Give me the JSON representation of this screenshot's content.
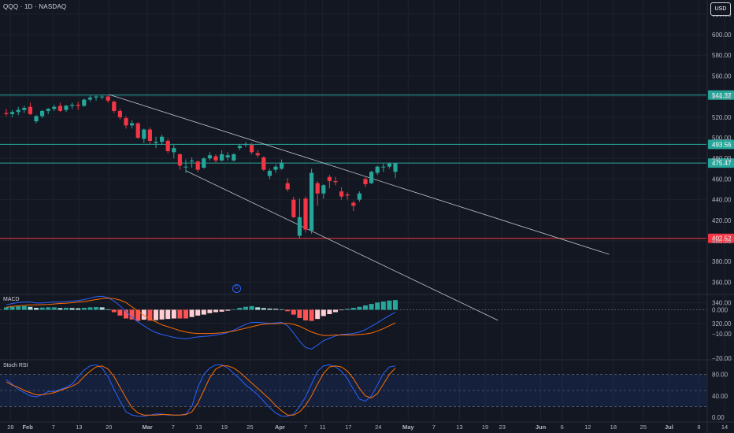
{
  "header": {
    "symbol_line": "QQQ · 1D · NASDAQ",
    "currency_button": "USD"
  },
  "chart_data": {
    "type": "candlestick",
    "title": "QQQ · 1D · NASDAQ",
    "price_axis_ticks": [
      "620.00",
      "600.00",
      "580.00",
      "560.00",
      "540.00",
      "520.00",
      "500.00",
      "480.00",
      "460.00",
      "440.00",
      "420.00",
      "400.00",
      "380.00",
      "360.00",
      "340.00",
      "320.00"
    ],
    "price_range": [
      312,
      625
    ],
    "horizontal_levels": [
      {
        "price": 541.37,
        "label": "541.37",
        "color": "#26a69a"
      },
      {
        "price": 493.56,
        "label": "493.56",
        "color": "#26a69a"
      },
      {
        "price": 475.47,
        "label": "475.47",
        "color": "#26a69a"
      },
      {
        "price": 402.52,
        "label": "402.52",
        "color": "#f23645"
      }
    ],
    "time_axis_ticks": [
      "28",
      "Feb",
      "7",
      "13",
      "20",
      "Mar",
      "7",
      "13",
      "19",
      "25",
      "Apr",
      "7",
      "11",
      "17",
      "24",
      "May",
      "7",
      "13",
      "19",
      "23",
      "Jun",
      "6",
      "12",
      "18",
      "25",
      "Jul",
      "8",
      "14"
    ],
    "trendlines": [
      {
        "from": [
          "Feb 20",
          542
        ],
        "to": [
          "Jun 17",
          387
        ]
      },
      {
        "from": [
          "Mar 10",
          468
        ],
        "to": [
          "May 22",
          323
        ]
      }
    ],
    "candles": [
      {
        "date": "Jan 27",
        "open": 524,
        "high": 528,
        "low": 521,
        "close": 523
      },
      {
        "date": "Jan 28",
        "open": 523,
        "high": 527,
        "low": 520,
        "close": 525
      },
      {
        "date": "Jan 29",
        "open": 525,
        "high": 530,
        "low": 522,
        "close": 527
      },
      {
        "date": "Jan 30",
        "open": 527,
        "high": 531,
        "low": 524,
        "close": 529
      },
      {
        "date": "Jan 31",
        "open": 530,
        "high": 534,
        "low": 522,
        "close": 523
      },
      {
        "date": "Feb 3",
        "open": 516,
        "high": 522,
        "low": 514,
        "close": 521
      },
      {
        "date": "Feb 4",
        "open": 521,
        "high": 527,
        "low": 519,
        "close": 526
      },
      {
        "date": "Feb 5",
        "open": 526,
        "high": 529,
        "low": 523,
        "close": 528
      },
      {
        "date": "Feb 6",
        "open": 528,
        "high": 532,
        "low": 526,
        "close": 530
      },
      {
        "date": "Feb 7",
        "open": 531,
        "high": 534,
        "low": 525,
        "close": 526
      },
      {
        "date": "Feb 10",
        "open": 527,
        "high": 532,
        "low": 525,
        "close": 531
      },
      {
        "date": "Feb 11",
        "open": 531,
        "high": 534,
        "low": 528,
        "close": 532
      },
      {
        "date": "Feb 12",
        "open": 532,
        "high": 535,
        "low": 527,
        "close": 531
      },
      {
        "date": "Feb 13",
        "open": 531,
        "high": 538,
        "low": 530,
        "close": 537
      },
      {
        "date": "Feb 14",
        "open": 537,
        "high": 541,
        "low": 535,
        "close": 539
      },
      {
        "date": "Feb 18",
        "open": 539,
        "high": 541,
        "low": 536,
        "close": 540
      },
      {
        "date": "Feb 19",
        "open": 540,
        "high": 542,
        "low": 537,
        "close": 540
      },
      {
        "date": "Feb 20",
        "open": 540,
        "high": 541,
        "low": 534,
        "close": 536
      },
      {
        "date": "Feb 21",
        "open": 535,
        "high": 536,
        "low": 524,
        "close": 526
      },
      {
        "date": "Feb 24",
        "open": 526,
        "high": 528,
        "low": 518,
        "close": 520
      },
      {
        "date": "Feb 25",
        "open": 519,
        "high": 521,
        "low": 509,
        "close": 512
      },
      {
        "date": "Feb 26",
        "open": 512,
        "high": 517,
        "low": 509,
        "close": 514
      },
      {
        "date": "Feb 27",
        "open": 514,
        "high": 515,
        "low": 499,
        "close": 500
      },
      {
        "date": "Feb 28",
        "open": 499,
        "high": 509,
        "low": 495,
        "close": 508
      },
      {
        "date": "Mar 3",
        "open": 508,
        "high": 510,
        "low": 494,
        "close": 497
      },
      {
        "date": "Mar 4",
        "open": 495,
        "high": 501,
        "low": 490,
        "close": 496
      },
      {
        "date": "Mar 5",
        "open": 496,
        "high": 503,
        "low": 493,
        "close": 501
      },
      {
        "date": "Mar 6",
        "open": 497,
        "high": 499,
        "low": 485,
        "close": 487
      },
      {
        "date": "Mar 7",
        "open": 486,
        "high": 493,
        "low": 480,
        "close": 490
      },
      {
        "date": "Mar 10",
        "open": 484,
        "high": 485,
        "low": 469,
        "close": 473
      },
      {
        "date": "Mar 11",
        "open": 472,
        "high": 479,
        "low": 466,
        "close": 472
      },
      {
        "date": "Mar 12",
        "open": 477,
        "high": 481,
        "low": 471,
        "close": 478
      },
      {
        "date": "Mar 13",
        "open": 477,
        "high": 478,
        "low": 467,
        "close": 469
      },
      {
        "date": "Mar 14",
        "open": 471,
        "high": 481,
        "low": 470,
        "close": 480
      },
      {
        "date": "Mar 17",
        "open": 480,
        "high": 486,
        "low": 478,
        "close": 483
      },
      {
        "date": "Mar 18",
        "open": 482,
        "high": 484,
        "low": 476,
        "close": 478
      },
      {
        "date": "Mar 19",
        "open": 478,
        "high": 488,
        "low": 477,
        "close": 484
      },
      {
        "date": "Mar 20",
        "open": 481,
        "high": 486,
        "low": 478,
        "close": 483
      },
      {
        "date": "Mar 21",
        "open": 478,
        "high": 485,
        "low": 477,
        "close": 484
      },
      {
        "date": "Mar 24",
        "open": 490,
        "high": 494,
        "low": 488,
        "close": 492
      },
      {
        "date": "Mar 25",
        "open": 493,
        "high": 496,
        "low": 491,
        "close": 494
      },
      {
        "date": "Mar 26",
        "open": 493,
        "high": 495,
        "low": 484,
        "close": 486
      },
      {
        "date": "Mar 27",
        "open": 485,
        "high": 488,
        "low": 481,
        "close": 483
      },
      {
        "date": "Mar 28",
        "open": 481,
        "high": 482,
        "low": 468,
        "close": 469
      },
      {
        "date": "Mar 31",
        "open": 463,
        "high": 470,
        "low": 460,
        "close": 468
      },
      {
        "date": "Apr 1",
        "open": 469,
        "high": 474,
        "low": 466,
        "close": 472
      },
      {
        "date": "Apr 2",
        "open": 470,
        "high": 479,
        "low": 469,
        "close": 476
      },
      {
        "date": "Apr 3",
        "open": 456,
        "high": 461,
        "low": 448,
        "close": 450
      },
      {
        "date": "Apr 4",
        "open": 440,
        "high": 443,
        "low": 422,
        "close": 423
      },
      {
        "date": "Apr 7",
        "open": 405,
        "high": 441,
        "low": 402,
        "close": 423
      },
      {
        "date": "Apr 8",
        "open": 441,
        "high": 443,
        "low": 408,
        "close": 411
      },
      {
        "date": "Apr 9",
        "open": 410,
        "high": 470,
        "low": 407,
        "close": 466
      },
      {
        "date": "Apr 10",
        "open": 456,
        "high": 458,
        "low": 434,
        "close": 446
      },
      {
        "date": "Apr 11",
        "open": 446,
        "high": 455,
        "low": 441,
        "close": 454
      },
      {
        "date": "Apr 14",
        "open": 462,
        "high": 464,
        "low": 451,
        "close": 458
      },
      {
        "date": "Apr 15",
        "open": 458,
        "high": 462,
        "low": 454,
        "close": 457
      },
      {
        "date": "Apr 16",
        "open": 448,
        "high": 452,
        "low": 440,
        "close": 443
      },
      {
        "date": "Apr 17",
        "open": 445,
        "high": 447,
        "low": 440,
        "close": 444
      },
      {
        "date": "Apr 21",
        "open": 437,
        "high": 439,
        "low": 429,
        "close": 434
      },
      {
        "date": "Apr 22",
        "open": 440,
        "high": 448,
        "low": 438,
        "close": 446
      },
      {
        "date": "Apr 23",
        "open": 460,
        "high": 463,
        "low": 452,
        "close": 455
      },
      {
        "date": "Apr 24",
        "open": 456,
        "high": 468,
        "low": 455,
        "close": 467
      },
      {
        "date": "Apr 25",
        "open": 466,
        "high": 473,
        "low": 464,
        "close": 472
      },
      {
        "date": "Apr 28",
        "open": 472,
        "high": 475,
        "low": 467,
        "close": 472
      },
      {
        "date": "Apr 29",
        "open": 472,
        "high": 476,
        "low": 470,
        "close": 475
      },
      {
        "date": "Apr 30",
        "open": 467,
        "high": 476,
        "low": 461,
        "close": 475.47
      }
    ],
    "macd": {
      "label": "MACD",
      "axis_ticks": [
        "0.000",
        "−10.00",
        "−20.00"
      ],
      "range": [
        -20,
        6
      ],
      "histogram": [
        1,
        1.2,
        1.4,
        1.5,
        1.2,
        0.8,
        0.9,
        1,
        1,
        0.7,
        0.8,
        0.7,
        0.6,
        0.8,
        1,
        1.1,
        1,
        0.2,
        -1,
        -2.4,
        -3.6,
        -4,
        -4.6,
        -4.1,
        -4.5,
        -4.3,
        -4,
        -3.8,
        -3.6,
        -3.6,
        -3.6,
        -3,
        -2.4,
        -2,
        -1.4,
        -1,
        -0.8,
        -0.4,
        0.2,
        0.8,
        1.2,
        1.5,
        1,
        0.7,
        0.5,
        0.4,
        0.2,
        -0.6,
        -2,
        -3.4,
        -4.4,
        -4.6,
        -3.8,
        -2.6,
        -1.8,
        -1,
        -0.2,
        0.4,
        0.8,
        1.2,
        1.8,
        2.4,
        3,
        3.4,
        3.8,
        4
      ],
      "macd_line": [
        2,
        2.6,
        3,
        3.2,
        3.2,
        2.8,
        2.8,
        3,
        3.2,
        3.2,
        3.4,
        3.6,
        3.8,
        4.2,
        4.8,
        5.4,
        5.6,
        5,
        3.6,
        1.6,
        -0.8,
        -3,
        -5,
        -6.6,
        -8.2,
        -9.4,
        -10.2,
        -10.8,
        -11.4,
        -11.8,
        -12,
        -11.6,
        -11.2,
        -11,
        -10.8,
        -10.4,
        -10,
        -9.4,
        -8.4,
        -7.2,
        -6,
        -5.2,
        -5.2,
        -5.4,
        -5.6,
        -5.4,
        -5.2,
        -6.6,
        -9.6,
        -13,
        -15.6,
        -16.2,
        -14.6,
        -12.8,
        -11.8,
        -10.8,
        -10.2,
        -10,
        -9.8,
        -9.2,
        -8.2,
        -6.8,
        -5.4,
        -3.8,
        -2.4,
        -1
      ],
      "signal_line": [
        1,
        1.4,
        1.6,
        1.8,
        2,
        2,
        2.1,
        2.2,
        2.4,
        2.6,
        2.7,
        2.9,
        3.2,
        3.4,
        3.8,
        4.2,
        4.6,
        4.8,
        4.6,
        4,
        3,
        1.2,
        -0.6,
        -2.4,
        -3.8,
        -5,
        -6.2,
        -7,
        -7.8,
        -8.6,
        -9.2,
        -9.6,
        -9.8,
        -9.8,
        -9.8,
        -9.7,
        -9.5,
        -9.2,
        -8.8,
        -8.2,
        -7.6,
        -7,
        -6.4,
        -6,
        -5.8,
        -5.8,
        -5.6,
        -5.6,
        -6,
        -6.8,
        -8,
        -9.2,
        -10,
        -10.6,
        -10.6,
        -10.4,
        -10.4,
        -10.4,
        -10.4,
        -10.2,
        -10,
        -9.6,
        -8.8,
        -7.8,
        -6.6,
        -5.4
      ]
    },
    "stoch_rsi": {
      "label": "Stoch RSI",
      "axis_ticks": [
        "80.00",
        "40.00",
        "0.00"
      ],
      "band": [
        20,
        80
      ],
      "range": [
        0,
        100
      ],
      "k_line": [
        70,
        62,
        52,
        46,
        40,
        38,
        42,
        48,
        48,
        52,
        56,
        62,
        76,
        88,
        96,
        98,
        92,
        76,
        52,
        30,
        10,
        4,
        2,
        2,
        4,
        6,
        6,
        4,
        4,
        4,
        6,
        20,
        56,
        80,
        92,
        98,
        98,
        92,
        82,
        72,
        60,
        52,
        42,
        30,
        18,
        8,
        2,
        2,
        6,
        20,
        38,
        62,
        86,
        96,
        98,
        94,
        86,
        72,
        52,
        34,
        30,
        40,
        60,
        82,
        94,
        96
      ],
      "d_line": [
        66,
        60,
        56,
        50,
        46,
        42,
        42,
        44,
        46,
        50,
        54,
        58,
        64,
        76,
        86,
        94,
        96,
        90,
        76,
        56,
        36,
        18,
        8,
        4,
        4,
        4,
        5,
        5,
        4,
        4,
        5,
        10,
        26,
        50,
        74,
        90,
        96,
        96,
        92,
        84,
        74,
        64,
        54,
        44,
        34,
        22,
        12,
        4,
        4,
        10,
        22,
        40,
        62,
        82,
        94,
        96,
        94,
        86,
        72,
        54,
        40,
        36,
        44,
        62,
        80,
        92
      ]
    }
  },
  "markers": {
    "d_marker": "D"
  }
}
